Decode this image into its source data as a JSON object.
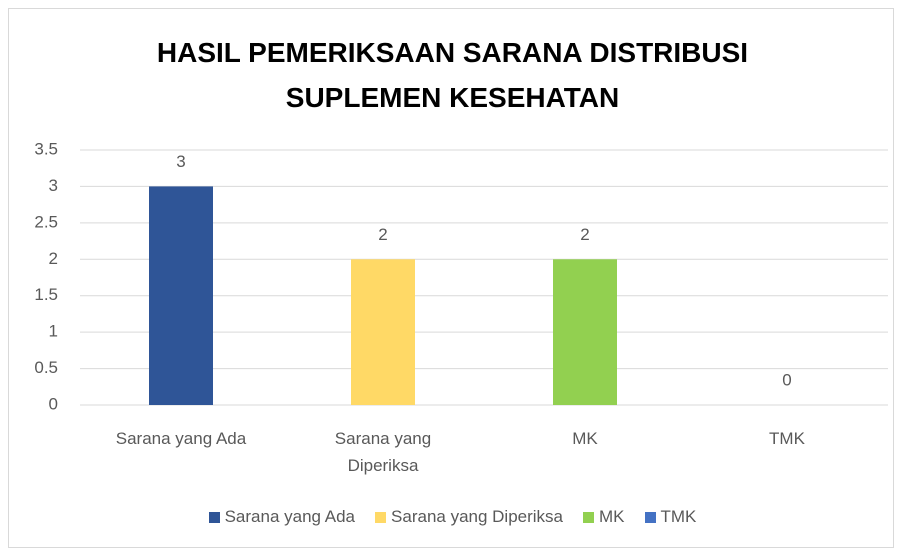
{
  "chart_data": {
    "type": "bar",
    "title": "HASIL PEMERIKSAAN SARANA DISTRIBUSI SUPLEMEN KESEHATAN",
    "categories": [
      "Sarana yang Ada",
      "Sarana yang Diperiksa",
      "MK",
      "TMK"
    ],
    "values": [
      3,
      2,
      2,
      0
    ],
    "colors": [
      "#2f5597",
      "#ffd966",
      "#92d050",
      "#4472c4"
    ],
    "ylim": [
      0,
      3.5
    ],
    "yticks": [
      0,
      0.5,
      1,
      1.5,
      2,
      2.5,
      3,
      3.5
    ],
    "grid": true,
    "legend": "bottom"
  }
}
